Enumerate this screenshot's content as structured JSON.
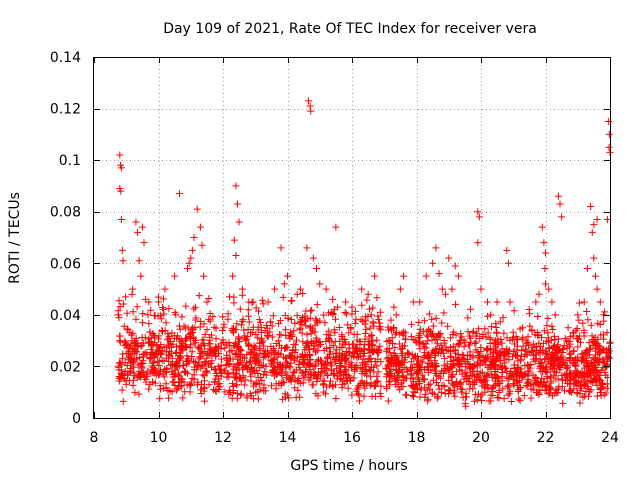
{
  "chart_data": {
    "type": "scatter",
    "title": "Day 109 of 2021, Rate Of TEC Index for receiver vera",
    "xlabel": "GPS time / hours",
    "ylabel": "ROTI / TECUs",
    "xlim": [
      8,
      24
    ],
    "ylim": [
      0,
      0.14
    ],
    "xticks": [
      8,
      10,
      12,
      14,
      16,
      18,
      20,
      22,
      24
    ],
    "yticks": [
      0,
      0.02,
      0.04,
      0.06,
      0.08,
      0.1,
      0.12,
      0.14
    ],
    "xtick_labels": [
      "8",
      "10",
      "12",
      "14",
      "16",
      "18",
      "20",
      "22",
      "24"
    ],
    "ytick_labels": [
      "0",
      "0.02",
      "0.04",
      "0.06",
      "0.08",
      "0.1",
      "0.12",
      "0.14"
    ],
    "grid": true,
    "marker": "+",
    "series": [
      {
        "name": "ROTI",
        "color": "#ff0000",
        "points": [
          [
            8.8,
            0.102
          ],
          [
            8.82,
            0.098
          ],
          [
            8.85,
            0.097
          ],
          [
            8.8,
            0.089
          ],
          [
            8.83,
            0.088
          ],
          [
            8.85,
            0.077
          ],
          [
            8.88,
            0.065
          ],
          [
            8.9,
            0.061
          ],
          [
            8.75,
            0.04
          ],
          [
            8.8,
            0.03
          ],
          [
            9.3,
            0.076
          ],
          [
            9.35,
            0.072
          ],
          [
            9.5,
            0.074
          ],
          [
            9.55,
            0.068
          ],
          [
            9.4,
            0.061
          ],
          [
            9.6,
            0.046
          ],
          [
            9.45,
            0.055
          ],
          [
            9.2,
            0.05
          ],
          [
            9.7,
            0.045
          ],
          [
            10.0,
            0.045
          ],
          [
            10.2,
            0.05
          ],
          [
            10.5,
            0.055
          ],
          [
            10.65,
            0.087
          ],
          [
            10.9,
            0.058
          ],
          [
            11.0,
            0.062
          ],
          [
            11.1,
            0.07
          ],
          [
            11.2,
            0.081
          ],
          [
            11.3,
            0.074
          ],
          [
            11.35,
            0.067
          ],
          [
            11.4,
            0.055
          ],
          [
            11.5,
            0.045
          ],
          [
            11.05,
            0.065
          ],
          [
            10.95,
            0.06
          ],
          [
            12.4,
            0.09
          ],
          [
            12.45,
            0.083
          ],
          [
            12.5,
            0.076
          ],
          [
            12.35,
            0.069
          ],
          [
            12.4,
            0.063
          ],
          [
            12.3,
            0.055
          ],
          [
            12.6,
            0.05
          ],
          [
            12.2,
            0.047
          ],
          [
            12.8,
            0.045
          ],
          [
            13.4,
            0.045
          ],
          [
            13.6,
            0.05
          ],
          [
            13.9,
            0.052
          ],
          [
            13.8,
            0.066
          ],
          [
            14.0,
            0.055
          ],
          [
            14.65,
            0.123
          ],
          [
            14.7,
            0.121
          ],
          [
            14.72,
            0.119
          ],
          [
            14.6,
            0.066
          ],
          [
            14.8,
            0.062
          ],
          [
            14.9,
            0.058
          ],
          [
            15.0,
            0.052
          ],
          [
            14.4,
            0.05
          ],
          [
            14.3,
            0.048
          ],
          [
            15.5,
            0.074
          ],
          [
            15.2,
            0.05
          ],
          [
            15.4,
            0.046
          ],
          [
            15.8,
            0.045
          ],
          [
            16.0,
            0.043
          ],
          [
            16.3,
            0.05
          ],
          [
            16.5,
            0.048
          ],
          [
            16.7,
            0.055
          ],
          [
            16.6,
            0.04
          ],
          [
            17.3,
            0.043
          ],
          [
            17.5,
            0.05
          ],
          [
            17.6,
            0.055
          ],
          [
            17.9,
            0.045
          ],
          [
            18.1,
            0.045
          ],
          [
            18.3,
            0.055
          ],
          [
            18.5,
            0.06
          ],
          [
            18.6,
            0.066
          ],
          [
            18.7,
            0.056
          ],
          [
            18.8,
            0.05
          ],
          [
            19.0,
            0.062
          ],
          [
            19.2,
            0.059
          ],
          [
            19.3,
            0.055
          ],
          [
            19.1,
            0.05
          ],
          [
            18.9,
            0.048
          ],
          [
            19.9,
            0.08
          ],
          [
            19.95,
            0.078
          ],
          [
            19.9,
            0.068
          ],
          [
            20.0,
            0.05
          ],
          [
            20.2,
            0.045
          ],
          [
            20.3,
            0.04
          ],
          [
            20.5,
            0.045
          ],
          [
            20.8,
            0.065
          ],
          [
            20.85,
            0.06
          ],
          [
            20.9,
            0.045
          ],
          [
            21.7,
            0.045
          ],
          [
            21.8,
            0.048
          ],
          [
            21.9,
            0.074
          ],
          [
            21.95,
            0.068
          ],
          [
            22.0,
            0.064
          ],
          [
            21.98,
            0.058
          ],
          [
            22.0,
            0.052
          ],
          [
            22.1,
            0.05
          ],
          [
            22.2,
            0.045
          ],
          [
            22.4,
            0.086
          ],
          [
            22.45,
            0.083
          ],
          [
            22.5,
            0.078
          ],
          [
            22.3,
            0.04
          ],
          [
            22.7,
            0.035
          ],
          [
            23.4,
            0.082
          ],
          [
            23.5,
            0.075
          ],
          [
            23.45,
            0.072
          ],
          [
            23.6,
            0.077
          ],
          [
            23.5,
            0.062
          ],
          [
            23.3,
            0.058
          ],
          [
            23.55,
            0.055
          ],
          [
            23.6,
            0.05
          ],
          [
            23.7,
            0.045
          ],
          [
            23.8,
            0.04
          ],
          [
            23.95,
            0.115
          ],
          [
            23.98,
            0.11
          ],
          [
            23.97,
            0.105
          ],
          [
            24.0,
            0.103
          ],
          [
            23.92,
            0.077
          ],
          [
            23.2,
            0.045
          ],
          [
            23.0,
            0.04
          ]
        ],
        "dense_bands": [
          {
            "x_range": [
              8.75,
              16.9
            ],
            "y_range": [
              0.005,
              0.045
            ],
            "count": 1300
          },
          {
            "x_range": [
              17.05,
              24.0
            ],
            "y_range": [
              0.004,
              0.04
            ],
            "count": 1200
          }
        ]
      }
    ]
  }
}
